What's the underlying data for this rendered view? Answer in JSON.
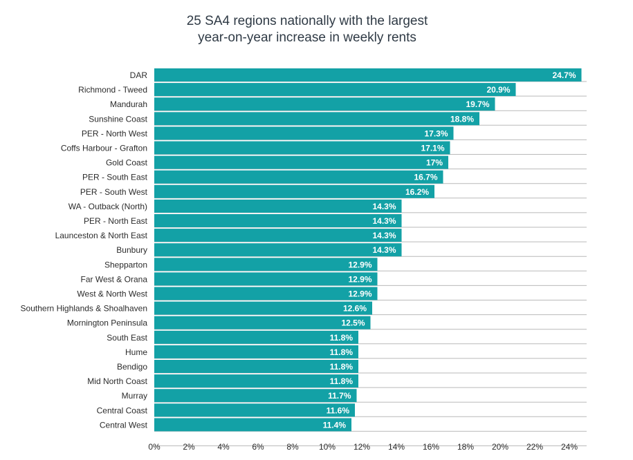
{
  "chart_data": {
    "type": "bar",
    "orientation": "horizontal",
    "title_lines": [
      "25 SA4 regions nationally with the largest",
      "year-on-year increase in weekly rents"
    ],
    "categories": [
      "DAR",
      "Richmond - Tweed",
      "Mandurah",
      "Sunshine Coast",
      "PER - North West",
      "Coffs Harbour - Grafton",
      "Gold Coast",
      "PER - South East",
      "PER - South West",
      "WA - Outback (North)",
      "PER - North East",
      "Launceston & North East",
      "Bunbury",
      "Shepparton",
      "Far West & Orana",
      "West & North West",
      "Southern Highlands & Shoalhaven",
      "Mornington Peninsula",
      "South East",
      "Hume",
      "Bendigo",
      "Mid North Coast",
      "Murray",
      "Central Coast",
      "Central West"
    ],
    "values": [
      24.7,
      20.9,
      19.7,
      18.8,
      17.3,
      17.1,
      17.0,
      16.7,
      16.2,
      14.3,
      14.3,
      14.3,
      14.3,
      12.9,
      12.9,
      12.9,
      12.6,
      12.5,
      11.8,
      11.8,
      11.8,
      11.8,
      11.7,
      11.6,
      11.4
    ],
    "data_labels": [
      "24.7%",
      "20.9%",
      "19.7%",
      "18.8%",
      "17.3%",
      "17.1%",
      "17%",
      "16.7%",
      "16.2%",
      "14.3%",
      "14.3%",
      "14.3%",
      "14.3%",
      "12.9%",
      "12.9%",
      "12.9%",
      "12.6%",
      "12.5%",
      "11.8%",
      "11.8%",
      "11.8%",
      "11.8%",
      "11.7%",
      "11.6%",
      "11.4%"
    ],
    "xlim": [
      0,
      25
    ],
    "x_ticks": [
      0,
      2,
      4,
      6,
      8,
      10,
      12,
      14,
      16,
      18,
      20,
      22,
      24
    ],
    "x_tick_labels": [
      "0%",
      "2%",
      "4%",
      "6%",
      "8%",
      "10%",
      "12%",
      "14%",
      "16%",
      "18%",
      "20%",
      "22%",
      "24%"
    ],
    "xlabel": "",
    "ylabel": "",
    "grid": true,
    "bar_color": "#13a1a6",
    "grid_color": "#b9b9b9"
  }
}
